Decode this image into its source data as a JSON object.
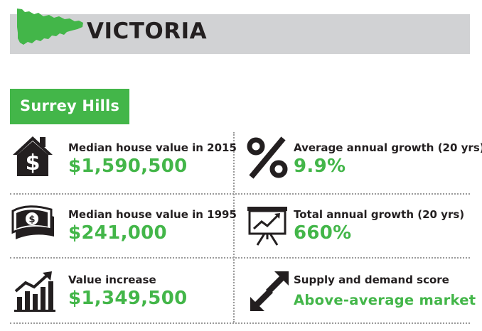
{
  "header": {
    "state": "VICTORIA"
  },
  "suburb": {
    "name": "Surrey Hills"
  },
  "stats": {
    "median_2015": {
      "label": "Median house value in 2015",
      "value": "$1,590,500",
      "icon": "house-dollar-icon"
    },
    "annual_growth": {
      "label": "Average annual growth (20 yrs)",
      "value": "9.9%",
      "icon": "percent-icon"
    },
    "median_1995": {
      "label": "Median house value in 1995",
      "value": "$241,000",
      "icon": "banknote-icon"
    },
    "total_growth": {
      "label": "Total annual growth (20 yrs)",
      "value": "660%",
      "icon": "presentation-chart-icon"
    },
    "value_increase": {
      "label": "Value increase",
      "value": "$1,349,500",
      "icon": "bar-chart-arrow-icon"
    },
    "supply_demand": {
      "label": "Supply and demand score",
      "value": "Above-average market",
      "icon": "up-down-arrows-icon"
    }
  },
  "colors": {
    "accent": "#43b649",
    "banner": "#d1d2d4",
    "text": "#231f20"
  }
}
